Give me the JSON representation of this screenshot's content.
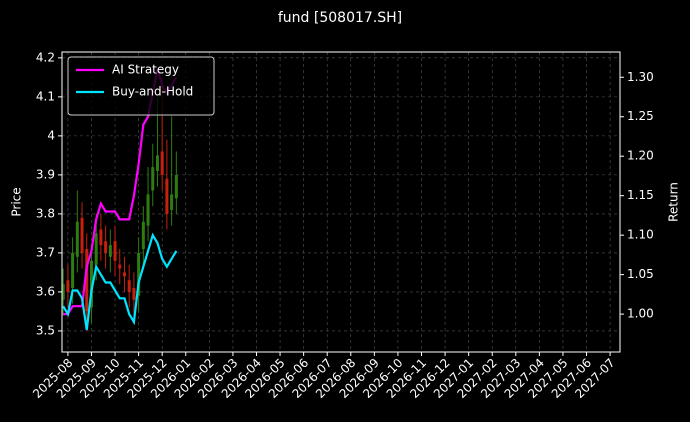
{
  "chart_data": {
    "type": "candlestick",
    "title": "fund [508017.SH]",
    "y_label": "Price",
    "y2_label": "Return",
    "x": [
      -0.2,
      0,
      0.2,
      0.4,
      0.6,
      0.8,
      1,
      1.2,
      1.4,
      1.6,
      1.8,
      2,
      2.2,
      2.4,
      2.6,
      2.8,
      3,
      3.2,
      3.4,
      3.6,
      3.8,
      4,
      4.2,
      4.4,
      4.6
    ],
    "open": [
      3.58,
      3.63,
      3.61,
      3.69,
      3.79,
      3.71,
      3.56,
      3.67,
      3.76,
      3.73,
      3.69,
      3.73,
      3.67,
      3.65,
      3.63,
      3.61,
      3.59,
      3.71,
      3.77,
      3.86,
      3.91,
      3.96,
      3.89,
      3.81,
      3.84
    ],
    "high": [
      3.66,
      3.67,
      3.74,
      3.86,
      3.83,
      3.75,
      3.72,
      3.8,
      3.8,
      3.77,
      3.76,
      3.77,
      3.71,
      3.69,
      3.67,
      3.65,
      3.74,
      3.82,
      3.92,
      3.98,
      4.1,
      4.15,
      3.99,
      4.05,
      3.96
    ],
    "low": [
      3.54,
      3.56,
      3.57,
      3.65,
      3.66,
      3.5,
      3.52,
      3.63,
      3.68,
      3.66,
      3.65,
      3.64,
      3.62,
      3.6,
      3.56,
      3.54,
      3.55,
      3.67,
      3.73,
      3.82,
      3.87,
      3.86,
      3.76,
      3.77,
      3.8
    ],
    "close": [
      3.62,
      3.6,
      3.7,
      3.78,
      3.7,
      3.55,
      3.68,
      3.75,
      3.72,
      3.7,
      3.72,
      3.68,
      3.66,
      3.64,
      3.6,
      3.58,
      3.7,
      3.78,
      3.85,
      3.92,
      3.95,
      3.9,
      3.8,
      3.85,
      3.9
    ],
    "up_color": "#2e7d12",
    "down_color": "#c8200e",
    "series": [
      {
        "name": "AI Strategy",
        "color": "#ff00ff",
        "axis": "y2",
        "values": [
          1.0,
          1.0,
          1.01,
          1.01,
          1.01,
          1.06,
          1.08,
          1.12,
          1.14,
          1.13,
          1.13,
          1.13,
          1.12,
          1.12,
          1.12,
          1.15,
          1.19,
          1.24,
          1.25,
          1.28,
          1.31,
          1.29,
          1.28,
          1.29,
          1.3
        ]
      },
      {
        "name": "Buy-and-Hold",
        "color": "#00e5ff",
        "axis": "y2",
        "values": [
          1.01,
          1.0,
          1.03,
          1.03,
          1.02,
          0.98,
          1.03,
          1.06,
          1.05,
          1.04,
          1.04,
          1.03,
          1.02,
          1.02,
          1.0,
          0.99,
          1.04,
          1.06,
          1.08,
          1.1,
          1.09,
          1.07,
          1.06,
          1.07,
          1.08
        ]
      }
    ],
    "xlim": [
      -0.25,
      23.42
    ],
    "xticks": [
      {
        "value": 0,
        "label": "2025-08"
      },
      {
        "value": 1,
        "label": "2025-09"
      },
      {
        "value": 2,
        "label": "2025-10"
      },
      {
        "value": 3,
        "label": "2025-11"
      },
      {
        "value": 4,
        "label": "2025-12"
      },
      {
        "value": 5,
        "label": "2026-01"
      },
      {
        "value": 6,
        "label": "2026-02"
      },
      {
        "value": 7,
        "label": "2026-03"
      },
      {
        "value": 8,
        "label": "2026-04"
      },
      {
        "value": 9,
        "label": "2026-05"
      },
      {
        "value": 10,
        "label": "2026-06"
      },
      {
        "value": 11,
        "label": "2026-07"
      },
      {
        "value": 12,
        "label": "2026-08"
      },
      {
        "value": 13,
        "label": "2026-09"
      },
      {
        "value": 14,
        "label": "2026-10"
      },
      {
        "value": 15,
        "label": "2026-11"
      },
      {
        "value": 16,
        "label": "2026-12"
      },
      {
        "value": 17,
        "label": "2027-01"
      },
      {
        "value": 18,
        "label": "2027-02"
      },
      {
        "value": 19,
        "label": "2027-03"
      },
      {
        "value": 20,
        "label": "2027-04"
      },
      {
        "value": 21,
        "label": "2027-05"
      },
      {
        "value": 22,
        "label": "2027-06"
      },
      {
        "value": 23,
        "label": "2027-07"
      }
    ],
    "ylim": [
      3.446,
      4.215
    ],
    "yticks": [
      3.5,
      3.6,
      3.7,
      3.8,
      3.9,
      4.0,
      4.1,
      4.2
    ],
    "y2lim": [
      0.952,
      1.332
    ],
    "y2ticks": [
      {
        "value": 1.0,
        "label": "1.00"
      },
      1.05,
      {
        "value": 1.1,
        "label": "1.10"
      },
      1.15,
      {
        "value": 1.2,
        "label": "1.20"
      },
      1.25,
      {
        "value": 1.3,
        "label": "1.30"
      }
    ],
    "grid": true,
    "legend": "upper left"
  }
}
